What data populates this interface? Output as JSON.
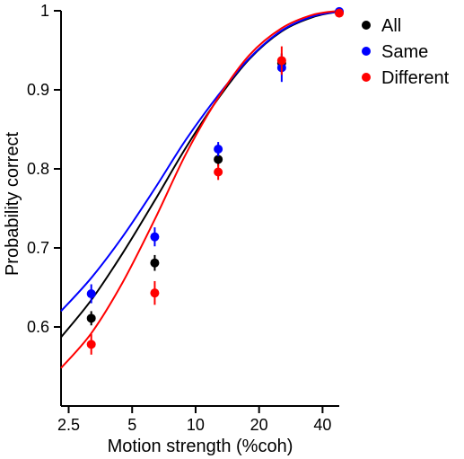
{
  "chart_data": {
    "type": "scatter",
    "x_scale": "log",
    "xlabel": "Motion strength (%coh)",
    "ylabel": "Probability correct",
    "xlim": [
      2.3,
      48
    ],
    "ylim": [
      0.5,
      1.0
    ],
    "xticks": [
      2.5,
      5,
      10,
      20,
      40
    ],
    "xtick_labels": [
      "2.5",
      "5",
      "10",
      "20",
      "40"
    ],
    "yticks": [
      0.6,
      0.7,
      0.8,
      0.9,
      1.0
    ],
    "ytick_labels": [
      "0.6",
      "0.7",
      "0.8",
      "0.9",
      "1"
    ],
    "grid": false,
    "legend_position": "top-right",
    "series": [
      {
        "name": "All",
        "color": "#000000",
        "x": [
          3.2,
          6.4,
          12.8,
          25.6,
          51.2
        ],
        "y": [
          0.611,
          0.681,
          0.812,
          0.934,
          0.998
        ],
        "err": [
          0.009,
          0.01,
          0.009,
          0.012,
          0.002
        ],
        "fit": [
          0.587,
          0.634,
          0.693,
          0.76,
          0.827,
          0.889,
          0.939,
          0.974,
          0.992,
          0.999
        ]
      },
      {
        "name": "Same",
        "color": "#0000ff",
        "x": [
          3.2,
          6.4,
          12.8,
          25.6,
          51.2
        ],
        "y": [
          0.642,
          0.714,
          0.825,
          0.928,
          0.999
        ],
        "err": [
          0.012,
          0.012,
          0.009,
          0.018,
          0.002
        ],
        "fit": [
          0.62,
          0.662,
          0.714,
          0.775,
          0.837,
          0.893,
          0.94,
          0.975,
          0.993,
          0.999
        ]
      },
      {
        "name": "Different",
        "color": "#ff0000",
        "x": [
          3.2,
          6.4,
          12.8,
          25.6,
          51.2
        ],
        "y": [
          0.578,
          0.643,
          0.796,
          0.937,
          0.997
        ],
        "err": [
          0.013,
          0.015,
          0.01,
          0.018,
          0.003
        ],
        "fit": [
          0.548,
          0.592,
          0.656,
          0.736,
          0.819,
          0.89,
          0.944,
          0.978,
          0.995,
          1.0
        ]
      }
    ],
    "fit_x": [
      2.3,
      3.2,
      4.5,
      6.4,
      9.0,
      12.8,
      18.0,
      25.6,
      36.0,
      48.0
    ]
  }
}
